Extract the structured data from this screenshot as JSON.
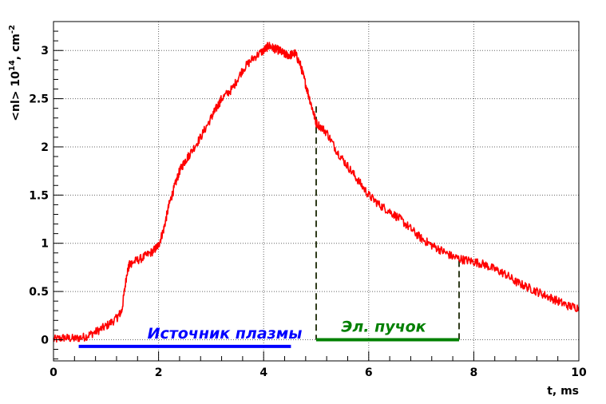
{
  "chart_data": {
    "type": "line",
    "xlabel": "t, ms",
    "ylabel_parts": {
      "main": "<nl> 10",
      "exp": "14",
      "unit": ", cm",
      "unit_exp": "-2"
    },
    "xlim": [
      0,
      10
    ],
    "ylim": [
      -0.22,
      3.3
    ],
    "xticks": [
      0,
      2,
      4,
      6,
      8,
      10
    ],
    "yticks": [
      0,
      0.5,
      1,
      1.5,
      2,
      2.5,
      3
    ],
    "ytick_labels": [
      "0",
      "0.5",
      "1",
      "1.5",
      "2",
      "2.5",
      "3"
    ],
    "grid": true,
    "series": [
      {
        "color": "#ff0000",
        "x": [
          0.0,
          0.2,
          0.4,
          0.6,
          0.8,
          1.0,
          1.2,
          1.3,
          1.4,
          1.45,
          1.5,
          1.7,
          1.9,
          2.0,
          2.1,
          2.2,
          2.3,
          2.4,
          2.5,
          2.6,
          2.8,
          3.0,
          3.1,
          3.2,
          3.4,
          3.6,
          3.8,
          4.0,
          4.1,
          4.2,
          4.3,
          4.4,
          4.5,
          4.6,
          4.7,
          4.8,
          4.9,
          5.0,
          5.2,
          5.4,
          5.6,
          5.8,
          6.0,
          6.2,
          6.4,
          6.6,
          6.8,
          7.0,
          7.2,
          7.4,
          7.6,
          7.8,
          8.0,
          8.2,
          8.4,
          8.6,
          8.8,
          9.0,
          9.2,
          9.4,
          9.6,
          9.8,
          10.0
        ],
        "y": [
          0.0,
          0.02,
          0.01,
          0.03,
          0.08,
          0.14,
          0.22,
          0.3,
          0.7,
          0.78,
          0.8,
          0.85,
          0.92,
          0.98,
          1.15,
          1.4,
          1.58,
          1.75,
          1.85,
          1.93,
          2.1,
          2.3,
          2.4,
          2.5,
          2.6,
          2.8,
          2.92,
          3.0,
          3.05,
          3.02,
          3.0,
          2.96,
          2.95,
          2.97,
          2.85,
          2.65,
          2.45,
          2.25,
          2.15,
          1.95,
          1.8,
          1.65,
          1.5,
          1.4,
          1.33,
          1.25,
          1.15,
          1.05,
          0.98,
          0.92,
          0.86,
          0.83,
          0.81,
          0.78,
          0.73,
          0.68,
          0.6,
          0.55,
          0.5,
          0.45,
          0.4,
          0.35,
          0.33
        ]
      }
    ],
    "annotations": [
      {
        "label": "Источник плазмы",
        "x_start": 0.48,
        "x_end": 4.52,
        "y": -0.07,
        "color": "#0000ff"
      },
      {
        "label": "Эл. пучок",
        "x_start": 5.0,
        "x_end": 7.72,
        "y": 0.0,
        "color": "#008000"
      }
    ],
    "markers": [
      {
        "x": 5.0,
        "y_bottom": 0.0,
        "y_top": 2.42,
        "color": "#2e3a1a",
        "style": "dashed"
      },
      {
        "x": 7.72,
        "y_bottom": 0.0,
        "y_top": 0.82,
        "color": "#2e3a1a",
        "style": "dashed"
      }
    ]
  }
}
